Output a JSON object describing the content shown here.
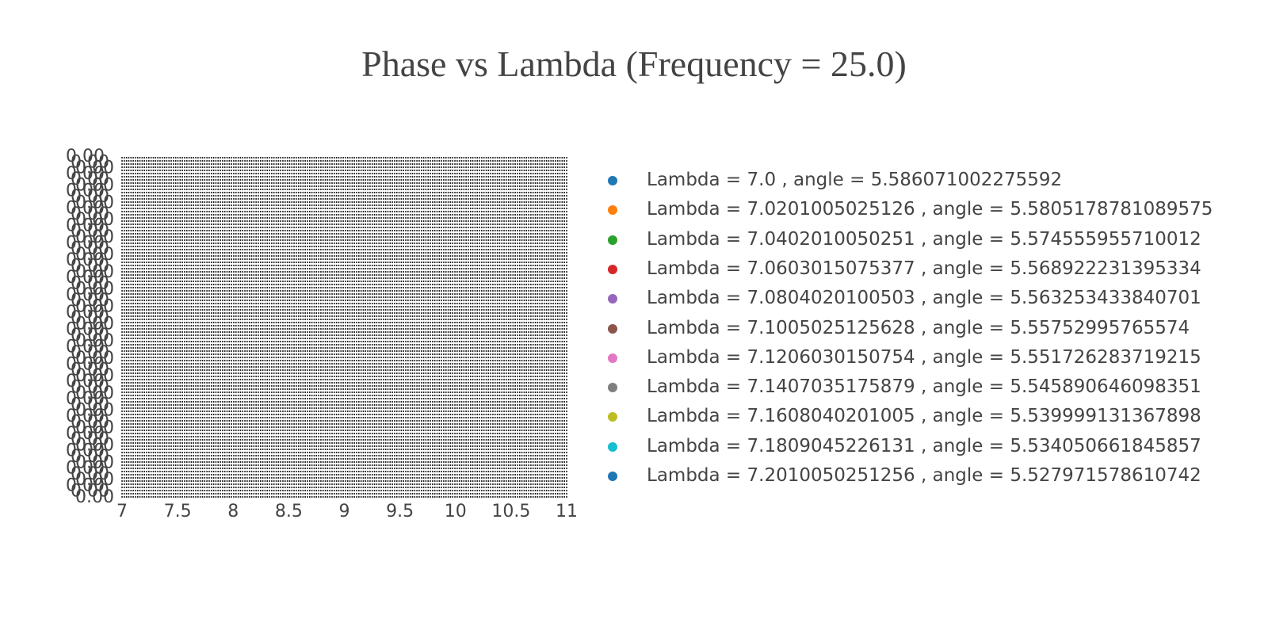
{
  "chart_data": {
    "type": "scatter",
    "title": "Phase vs Lambda (Frequency = 25.0)",
    "xlabel": "",
    "ylabel": "",
    "xlim": [
      6.9,
      11.05
    ],
    "x_ticks": [
      "7",
      "7.5",
      "8",
      "8.5",
      "9",
      "9.5",
      "10",
      "10.5",
      "11"
    ],
    "x_tick_values": [
      7,
      7.5,
      8,
      8.5,
      9,
      9.5,
      10,
      10.5,
      11
    ],
    "grid": false,
    "legend_position": "right",
    "series": [
      {
        "name": "Lambda = 7.0 , angle = 5.586071002275592",
        "x": 7.0,
        "color": "#1f77b4"
      },
      {
        "name": "Lambda = 7.0201005025126 , angle = 5.5805178781089575",
        "x": 7.0201005025126,
        "color": "#ff7f0e"
      },
      {
        "name": "Lambda = 7.0402010050251 , angle = 5.574555955710012",
        "x": 7.0402010050251,
        "color": "#2ca02c"
      },
      {
        "name": "Lambda = 7.0603015075377 , angle = 5.568922231395334",
        "x": 7.0603015075377,
        "color": "#d62728"
      },
      {
        "name": "Lambda = 7.0804020100503 , angle = 5.563253433840701",
        "x": 7.0804020100503,
        "color": "#9467bd"
      },
      {
        "name": "Lambda = 7.1005025125628 , angle = 5.55752995765574",
        "x": 7.1005025125628,
        "color": "#8c564b"
      },
      {
        "name": "Lambda = 7.1206030150754 , angle = 5.551726283719215",
        "x": 7.1206030150754,
        "color": "#e377c2"
      },
      {
        "name": "Lambda = 7.1407035175879 , angle = 5.545890646098351",
        "x": 7.1407035175879,
        "color": "#7f7f7f"
      },
      {
        "name": "Lambda = 7.1608040201005 , angle = 5.539999131367898",
        "x": 7.1608040201005,
        "color": "#bcbd22"
      },
      {
        "name": "Lambda = 7.1809045226131 , angle = 5.534050661845857",
        "x": 7.1809045226131,
        "color": "#17becf"
      },
      {
        "name": "Lambda = 7.2010050251256 , angle = 5.527971578610742",
        "x": 7.2010050251256,
        "color": "#1f77b4"
      }
    ]
  }
}
